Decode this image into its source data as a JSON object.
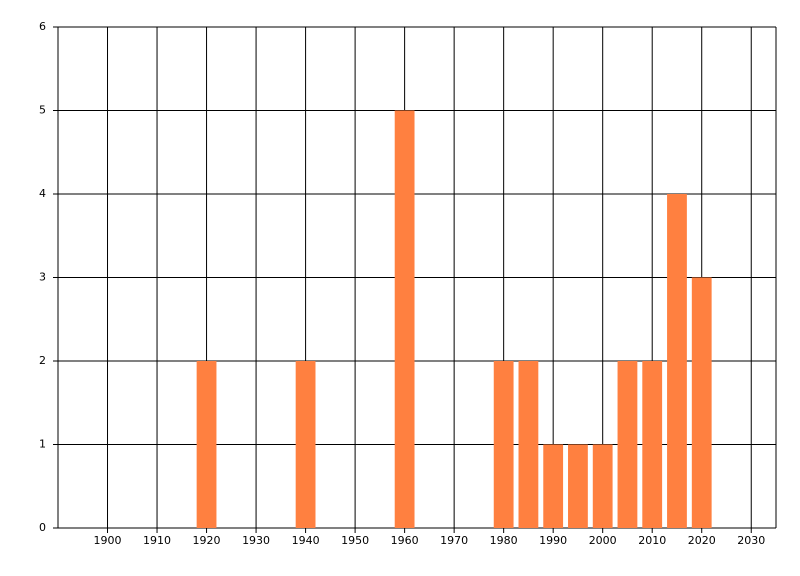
{
  "chart_data": {
    "type": "bar",
    "x": [
      1920,
      1940,
      1960,
      1980,
      1985,
      1990,
      1995,
      2000,
      2005,
      2010,
      2015,
      2020
    ],
    "values": [
      2,
      2,
      5,
      2,
      2,
      1,
      1,
      1,
      2,
      2,
      4,
      3
    ],
    "color": "#ff8040",
    "bar_width": 4,
    "xlim": [
      1890,
      2035
    ],
    "xticks": [
      1900,
      1910,
      1920,
      1930,
      1940,
      1950,
      1960,
      1970,
      1980,
      1990,
      2000,
      2010,
      2020,
      2030
    ],
    "ylim": [
      0,
      6
    ],
    "yticks": [
      0,
      1,
      2,
      3,
      4,
      5,
      6
    ],
    "grid": true
  }
}
